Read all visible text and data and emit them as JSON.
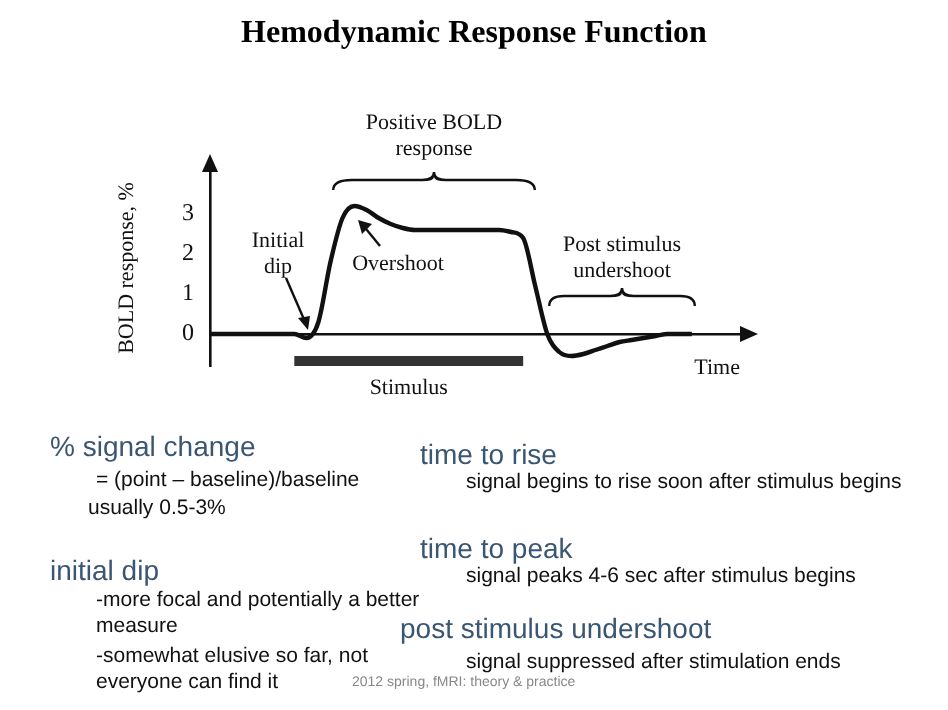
{
  "chart_data": {
    "type": "line",
    "title": "Hemodynamic Response Function",
    "ylabel": "BOLD response, %",
    "xlabel": "Time",
    "categories": [
      null,
      null,
      null,
      null,
      null,
      null,
      null,
      null,
      null,
      null,
      null,
      null,
      null,
      null,
      null,
      null,
      null,
      null,
      null,
      null,
      null,
      null,
      null,
      null,
      null,
      null,
      null,
      null,
      null,
      null,
      null,
      null,
      null,
      null,
      null,
      null,
      null,
      null,
      null,
      null,
      null,
      null,
      null,
      null,
      null
    ],
    "series": [
      {
        "color": "#111111",
        "values": [
          0,
          0,
          0,
          0,
          0,
          0,
          0,
          0,
          -0.1,
          0.3,
          1.8,
          2.9,
          3.2,
          3.1,
          2.9,
          2.75,
          2.65,
          2.6,
          2.6,
          2.6,
          2.6,
          2.6,
          2.6,
          2.6,
          2.6,
          2.55,
          2.4,
          1.2,
          0,
          -0.45,
          -0.55,
          -0.5,
          -0.4,
          -0.3,
          -0.2,
          -0.15,
          -0.1,
          -0.05,
          0,
          0,
          0,
          null,
          null,
          null,
          null
        ]
      },
      {
        "name": "Stimulus",
        "color": "#333333",
        "values": [
          null,
          null,
          null,
          null,
          null,
          null,
          null,
          -0.7,
          -0.7,
          -0.7,
          -0.7,
          -0.7,
          -0.7,
          -0.7,
          -0.7,
          -0.7,
          -0.7,
          -0.7,
          -0.7,
          -0.7,
          -0.7,
          -0.7,
          -0.7,
          -0.7,
          -0.7,
          -0.7,
          -0.7,
          null,
          null,
          null,
          null,
          null,
          null,
          null,
          null,
          null,
          null,
          null,
          null,
          null,
          null,
          null,
          null,
          null,
          null
        ]
      }
    ],
    "ylim": [
      -0.8,
      4.1
    ],
    "yticks": [
      0,
      1,
      2,
      3
    ],
    "grid": false,
    "legend": false,
    "marker": "none",
    "line_style": "solid",
    "annotations": [
      "Positive BOLD response",
      "Initial dip",
      "Overshoot",
      "Post stimulus undershoot",
      "% signal change",
      "= (point – baseline)/baseline",
      "usually 0.5-3%",
      "initial dip",
      "-more focal and potentially a better",
      "measure",
      "-somewhat elusive so far, not",
      "everyone can find it",
      "time to rise",
      "signal begins to rise soon after stimulus begins",
      "time to peak",
      "signal peaks 4-6 sec after stimulus begins",
      "post stimulus undershoot",
      "signal suppressed after stimulation ends",
      "2012 spring, fMRI: theory & practice"
    ]
  }
}
